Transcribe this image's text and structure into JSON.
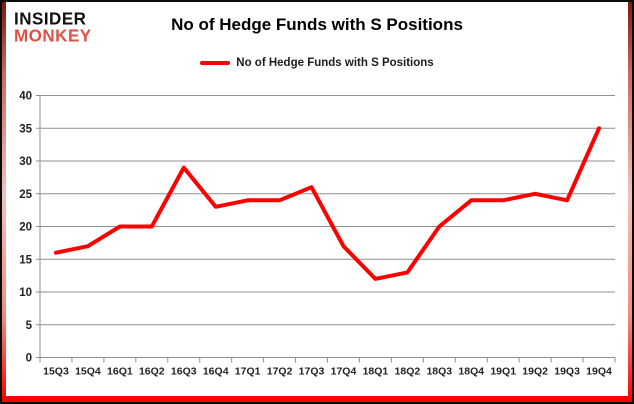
{
  "logo": {
    "line1": "INSIDER",
    "line2": "MONKEY",
    "color_line1": "#111111",
    "color_line2": "#dd5044"
  },
  "header": {
    "title": "No of Hedge Funds with S Positions"
  },
  "legend": {
    "label": "No of Hedge Funds with S Positions",
    "swatch_color": "#fe0000"
  },
  "frame": {
    "border_color": "#0a0a0a",
    "side_strip_color": "#fe0000",
    "bottom_strip_color": "#fe0000"
  },
  "chart_data": {
    "type": "line",
    "title": "No of Hedge Funds with S Positions",
    "categories": [
      "15Q3",
      "15Q4",
      "16Q1",
      "16Q2",
      "16Q3",
      "16Q4",
      "17Q1",
      "17Q2",
      "17Q3",
      "17Q4",
      "18Q1",
      "18Q2",
      "18Q3",
      "18Q4",
      "19Q1",
      "19Q2",
      "19Q3",
      "19Q4"
    ],
    "series": [
      {
        "name": "No of Hedge Funds with S Positions",
        "values": [
          16,
          17,
          20,
          20,
          29,
          23,
          24,
          24,
          26,
          17,
          12,
          13,
          20,
          24,
          24,
          25,
          24,
          35
        ],
        "color": "#fe0000"
      }
    ],
    "xlabel": "",
    "ylabel": "",
    "ylim": [
      0,
      40
    ],
    "ytick_step": 5,
    "grid": true,
    "gridline_color": "#8f8f8f",
    "axis_color": "#8f8f8f",
    "tick_label_color": "#222222",
    "legend_position": "top-center"
  }
}
